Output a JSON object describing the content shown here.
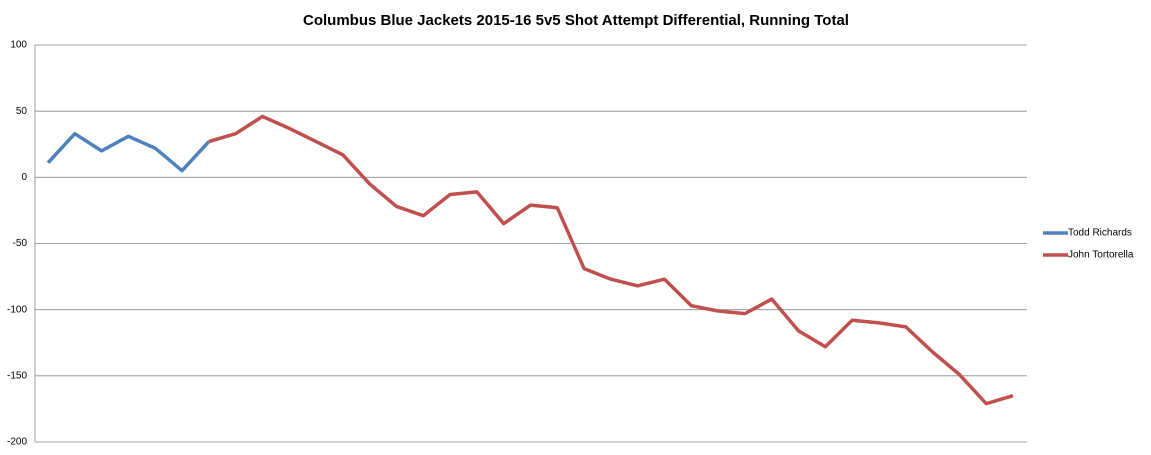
{
  "chart_data": {
    "type": "line",
    "title": "Columbus Blue Jackets 2015-16 5v5 Shot Attempt Differential, Running Total",
    "categories": [
      null,
      null,
      null,
      null,
      null,
      null,
      null,
      null,
      null,
      null,
      null,
      null,
      null,
      null,
      null,
      null,
      null,
      null,
      null,
      null,
      null,
      null,
      null,
      null,
      null,
      null,
      null,
      null,
      null,
      null,
      null,
      null,
      null,
      null,
      null,
      null,
      null
    ],
    "series": [
      {
        "name": "Todd Richards",
        "color": "#4f81bd",
        "values": [
          11,
          33,
          20,
          31,
          22,
          5,
          27,
          null,
          null,
          null,
          null,
          null,
          null,
          null,
          null,
          null,
          null,
          null,
          null,
          null,
          null,
          null,
          null,
          null,
          null,
          null,
          null,
          null,
          null,
          null,
          null,
          null,
          null,
          null,
          null,
          null,
          null
        ]
      },
      {
        "name": "John Tortorella",
        "color": "#c0504d",
        "values": [
          null,
          null,
          null,
          null,
          null,
          null,
          27,
          33,
          46,
          37,
          27,
          17,
          -5,
          -22,
          -29,
          -13,
          -11,
          -35,
          -21,
          -23,
          -69,
          -77,
          -82,
          -77,
          -97,
          -101,
          -103,
          -92,
          -116,
          -128,
          -108,
          -110,
          -113,
          -132,
          -149,
          -171,
          -165
        ]
      }
    ],
    "ylim": [
      -200,
      100
    ],
    "yticks": [
      -200,
      -150,
      -100,
      -50,
      0,
      50,
      100
    ],
    "grid": true,
    "legend": "right"
  }
}
